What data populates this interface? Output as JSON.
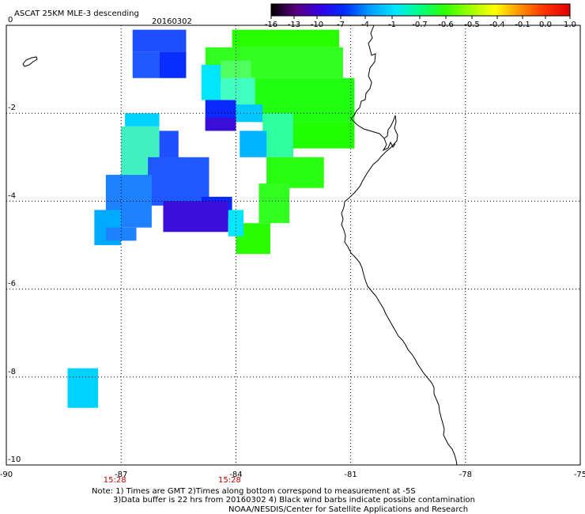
{
  "chart_data": {
    "type": "heatmap",
    "title": "ASCAT 25KM MLE-3 descending",
    "date": "20160302",
    "colorbar": {
      "ticks": [
        "-16",
        "-13",
        "-10",
        "-7",
        "-4",
        "-1",
        "-0.7",
        "-0.6",
        "-0.5",
        "-0.4",
        "-0.1",
        "0.0",
        "1.0"
      ],
      "colors": [
        "#000000",
        "#5a007f",
        "#3200e6",
        "#0030ff",
        "#00a0ff",
        "#00e6ff",
        "#00ff80",
        "#32ff00",
        "#a0ff00",
        "#ffff00",
        "#ff9000",
        "#ff3000",
        "#e00000"
      ]
    },
    "x_axis": {
      "ticks": [
        "-90",
        "-87",
        "-84",
        "-81",
        "-78",
        "-75"
      ],
      "range": [
        -90,
        -75
      ],
      "time_labels": [
        {
          "lon": -87,
          "label": "15:28"
        },
        {
          "lon": -84,
          "label": "15:28"
        }
      ]
    },
    "y_axis": {
      "ticks": [
        "0",
        "-2",
        "-4",
        "-6",
        "-8",
        "-10"
      ],
      "range": [
        -10,
        0
      ]
    },
    "grid": "dotted",
    "cells": [
      {
        "lon": [
          -86.7,
          -85.3
        ],
        "lat": [
          -0.1,
          -0.6
        ],
        "color": "#1e50ff"
      },
      {
        "lon": [
          -86.7,
          -86.0
        ],
        "lat": [
          -0.6,
          -1.2
        ],
        "color": "#1e5aff"
      },
      {
        "lon": [
          -86.0,
          -85.3
        ],
        "lat": [
          -0.6,
          -1.2
        ],
        "color": "#0a2dff"
      },
      {
        "lon": [
          -84.1,
          -81.3
        ],
        "lat": [
          -0.1,
          -0.5
        ],
        "color": "#2aff00"
      },
      {
        "lon": [
          -84.8,
          -81.2
        ],
        "lat": [
          -0.5,
          -1.2
        ],
        "color": "#32ff20"
      },
      {
        "lon": [
          -84.4,
          -83.6
        ],
        "lat": [
          -0.8,
          -1.3
        ],
        "color": "#50ff60"
      },
      {
        "lon": [
          -84.9,
          -84.4
        ],
        "lat": [
          -0.9,
          -1.7
        ],
        "color": "#00e6ff"
      },
      {
        "lon": [
          -84.4,
          -83.5
        ],
        "lat": [
          -1.2,
          -1.8
        ],
        "color": "#40ffc0"
      },
      {
        "lon": [
          -83.5,
          -80.9
        ],
        "lat": [
          -1.2,
          -2.2
        ],
        "color": "#20ff10"
      },
      {
        "lon": [
          -84.8,
          -84.0
        ],
        "lat": [
          -1.7,
          -2.4
        ],
        "color": "#0a28ff"
      },
      {
        "lon": [
          -84.0,
          -83.3
        ],
        "lat": [
          -1.8,
          -2.2
        ],
        "color": "#00c8ff"
      },
      {
        "lon": [
          -83.3,
          -82.5
        ],
        "lat": [
          -2.0,
          -3.0
        ],
        "color": "#30ffa0"
      },
      {
        "lon": [
          -84.8,
          -84.0
        ],
        "lat": [
          -2.1,
          -2.4
        ],
        "color": "#3a10d8"
      },
      {
        "lon": [
          -83.9,
          -83.2
        ],
        "lat": [
          -2.4,
          -3.0
        ],
        "color": "#00b4ff"
      },
      {
        "lon": [
          -82.5,
          -80.9
        ],
        "lat": [
          -2.2,
          -2.8
        ],
        "color": "#20ff00"
      },
      {
        "lon": [
          -83.2,
          -81.7
        ],
        "lat": [
          -3.0,
          -3.7
        ],
        "color": "#28ff10"
      },
      {
        "lon": [
          -83.4,
          -82.6
        ],
        "lat": [
          -3.6,
          -4.5
        ],
        "color": "#30ff20"
      },
      {
        "lon": [
          -84.0,
          -83.1
        ],
        "lat": [
          -4.5,
          -5.2
        ],
        "color": "#2aff00"
      },
      {
        "lon": [
          -86.9,
          -86.0
        ],
        "lat": [
          -2.0,
          -2.3
        ],
        "color": "#00d2ff"
      },
      {
        "lon": [
          -87.0,
          -86.0
        ],
        "lat": [
          -2.3,
          -3.5
        ],
        "color": "#40f0c0"
      },
      {
        "lon": [
          -86.0,
          -85.5
        ],
        "lat": [
          -2.4,
          -3.1
        ],
        "color": "#1e50ff"
      },
      {
        "lon": [
          -86.3,
          -84.7
        ],
        "lat": [
          -3.0,
          -4.1
        ],
        "color": "#1e5aff"
      },
      {
        "lon": [
          -84.9,
          -84.1
        ],
        "lat": [
          -3.9,
          -4.4
        ],
        "color": "#0a28ff"
      },
      {
        "lon": [
          -85.9,
          -84.2
        ],
        "lat": [
          -4.0,
          -4.7
        ],
        "color": "#3a10d8"
      },
      {
        "lon": [
          -87.4,
          -86.2
        ],
        "lat": [
          -3.4,
          -4.6
        ],
        "color": "#1e82ff"
      },
      {
        "lon": [
          -87.7,
          -87.0
        ],
        "lat": [
          -4.2,
          -5.0
        ],
        "color": "#00aaff"
      },
      {
        "lon": [
          -87.4,
          -86.6
        ],
        "lat": [
          -4.6,
          -4.9
        ],
        "color": "#1e82ff"
      },
      {
        "lon": [
          -84.2,
          -83.8
        ],
        "lat": [
          -4.2,
          -4.8
        ],
        "color": "#00e6ff"
      },
      {
        "lon": [
          -88.4,
          -87.6
        ],
        "lat": [
          -7.8,
          -8.7
        ],
        "color": "#00d2ff"
      }
    ]
  },
  "notes": [
    "Note: 1) Times are GMT 2)Times along bottom correspond to measurement at -5S",
    "3)Data buffer is 22 hrs from 20160302 4) Black wind barbs indicate possible contamination",
    "NOAA/NESDIS/Center for Satellite Applications and Research"
  ]
}
